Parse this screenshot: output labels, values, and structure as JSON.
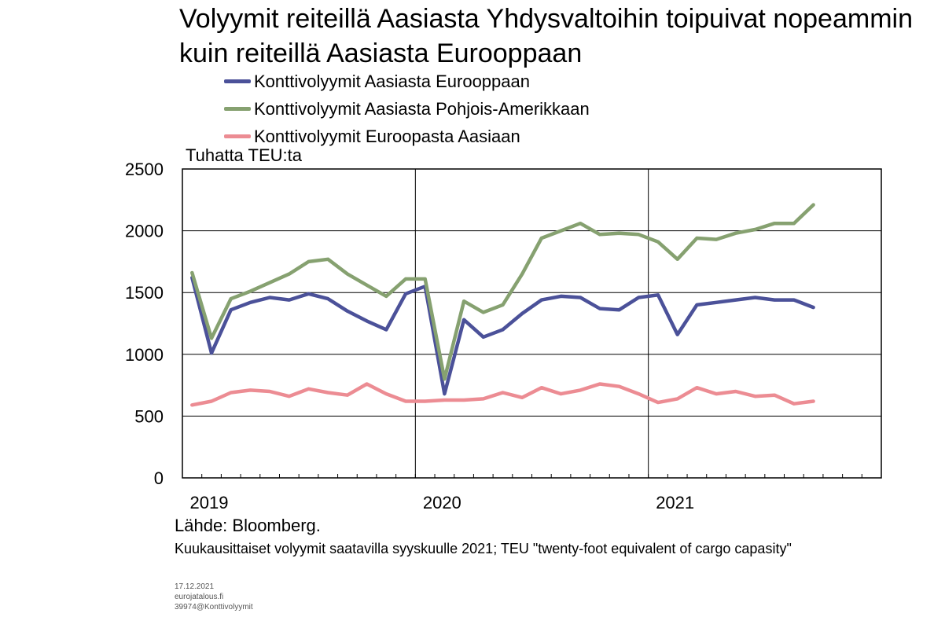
{
  "meta": {
    "date": "17.12.2021",
    "site": "eurojatalous.fi",
    "code": "39974@Konttivolyymit"
  },
  "source": "Lähde: Bloomberg.",
  "note": "Kuukausittaiset volyymit saatavilla syyskuulle 2021; TEU \"twenty-foot equivalent of cargo capasity\"",
  "colors": {
    "series1": "#4b5199",
    "series2": "#86a170",
    "series3": "#ec8c93"
  },
  "chart_data": {
    "type": "line",
    "title": "Volyymit reiteillä Aasiasta Yhdysvaltoihin toipuivat nopeammin kuin reiteillä Aasiasta Eurooppaan",
    "ylabel": "Tuhatta TEU:ta",
    "xlabel": "",
    "ylim": [
      0,
      2500
    ],
    "yticks": [
      0,
      500,
      1000,
      1500,
      2000,
      2500
    ],
    "x": [
      "2019-01",
      "2019-02",
      "2019-03",
      "2019-04",
      "2019-05",
      "2019-06",
      "2019-07",
      "2019-08",
      "2019-09",
      "2019-10",
      "2019-11",
      "2019-12",
      "2020-01",
      "2020-02",
      "2020-03",
      "2020-04",
      "2020-05",
      "2020-06",
      "2020-07",
      "2020-08",
      "2020-09",
      "2020-10",
      "2020-11",
      "2020-12",
      "2021-01",
      "2021-02",
      "2021-03",
      "2021-04",
      "2021-05",
      "2021-06",
      "2021-07",
      "2021-08",
      "2021-09"
    ],
    "xticklabels": [
      {
        "label": "2019",
        "at": "2019-01"
      },
      {
        "label": "2020",
        "at": "2020-01"
      },
      {
        "label": "2021",
        "at": "2021-01"
      }
    ],
    "xrange": [
      "2019-01",
      "2021-12"
    ],
    "grid": true,
    "legend_position": "top",
    "series": [
      {
        "name": "Konttivolyymit Aasiasta Eurooppaan",
        "color": "#4b5199",
        "values": [
          1620,
          1010,
          1360,
          1420,
          1460,
          1440,
          1490,
          1450,
          1350,
          1270,
          1200,
          1490,
          1550,
          680,
          1280,
          1140,
          1200,
          1330,
          1440,
          1470,
          1460,
          1370,
          1360,
          1460,
          1480,
          1160,
          1400,
          1420,
          1440,
          1460,
          1440,
          1440,
          1380
        ]
      },
      {
        "name": "Konttivolyymit Aasiasta Pohjois-Amerikkaan",
        "color": "#86a170",
        "values": [
          1660,
          1130,
          1450,
          1510,
          1580,
          1650,
          1750,
          1770,
          1650,
          1560,
          1470,
          1610,
          1610,
          800,
          1430,
          1340,
          1400,
          1650,
          1940,
          2000,
          2060,
          1970,
          1980,
          1970,
          1910,
          1770,
          1940,
          1930,
          1980,
          2010,
          2060,
          2060,
          2210
        ]
      },
      {
        "name": "Konttivolyymit Euroopasta Aasiaan",
        "color": "#ec8c93",
        "values": [
          590,
          620,
          690,
          710,
          700,
          660,
          720,
          690,
          670,
          760,
          680,
          620,
          620,
          630,
          630,
          640,
          690,
          650,
          730,
          680,
          710,
          760,
          740,
          680,
          610,
          640,
          730,
          680,
          700,
          660,
          670,
          600,
          620
        ]
      }
    ]
  }
}
